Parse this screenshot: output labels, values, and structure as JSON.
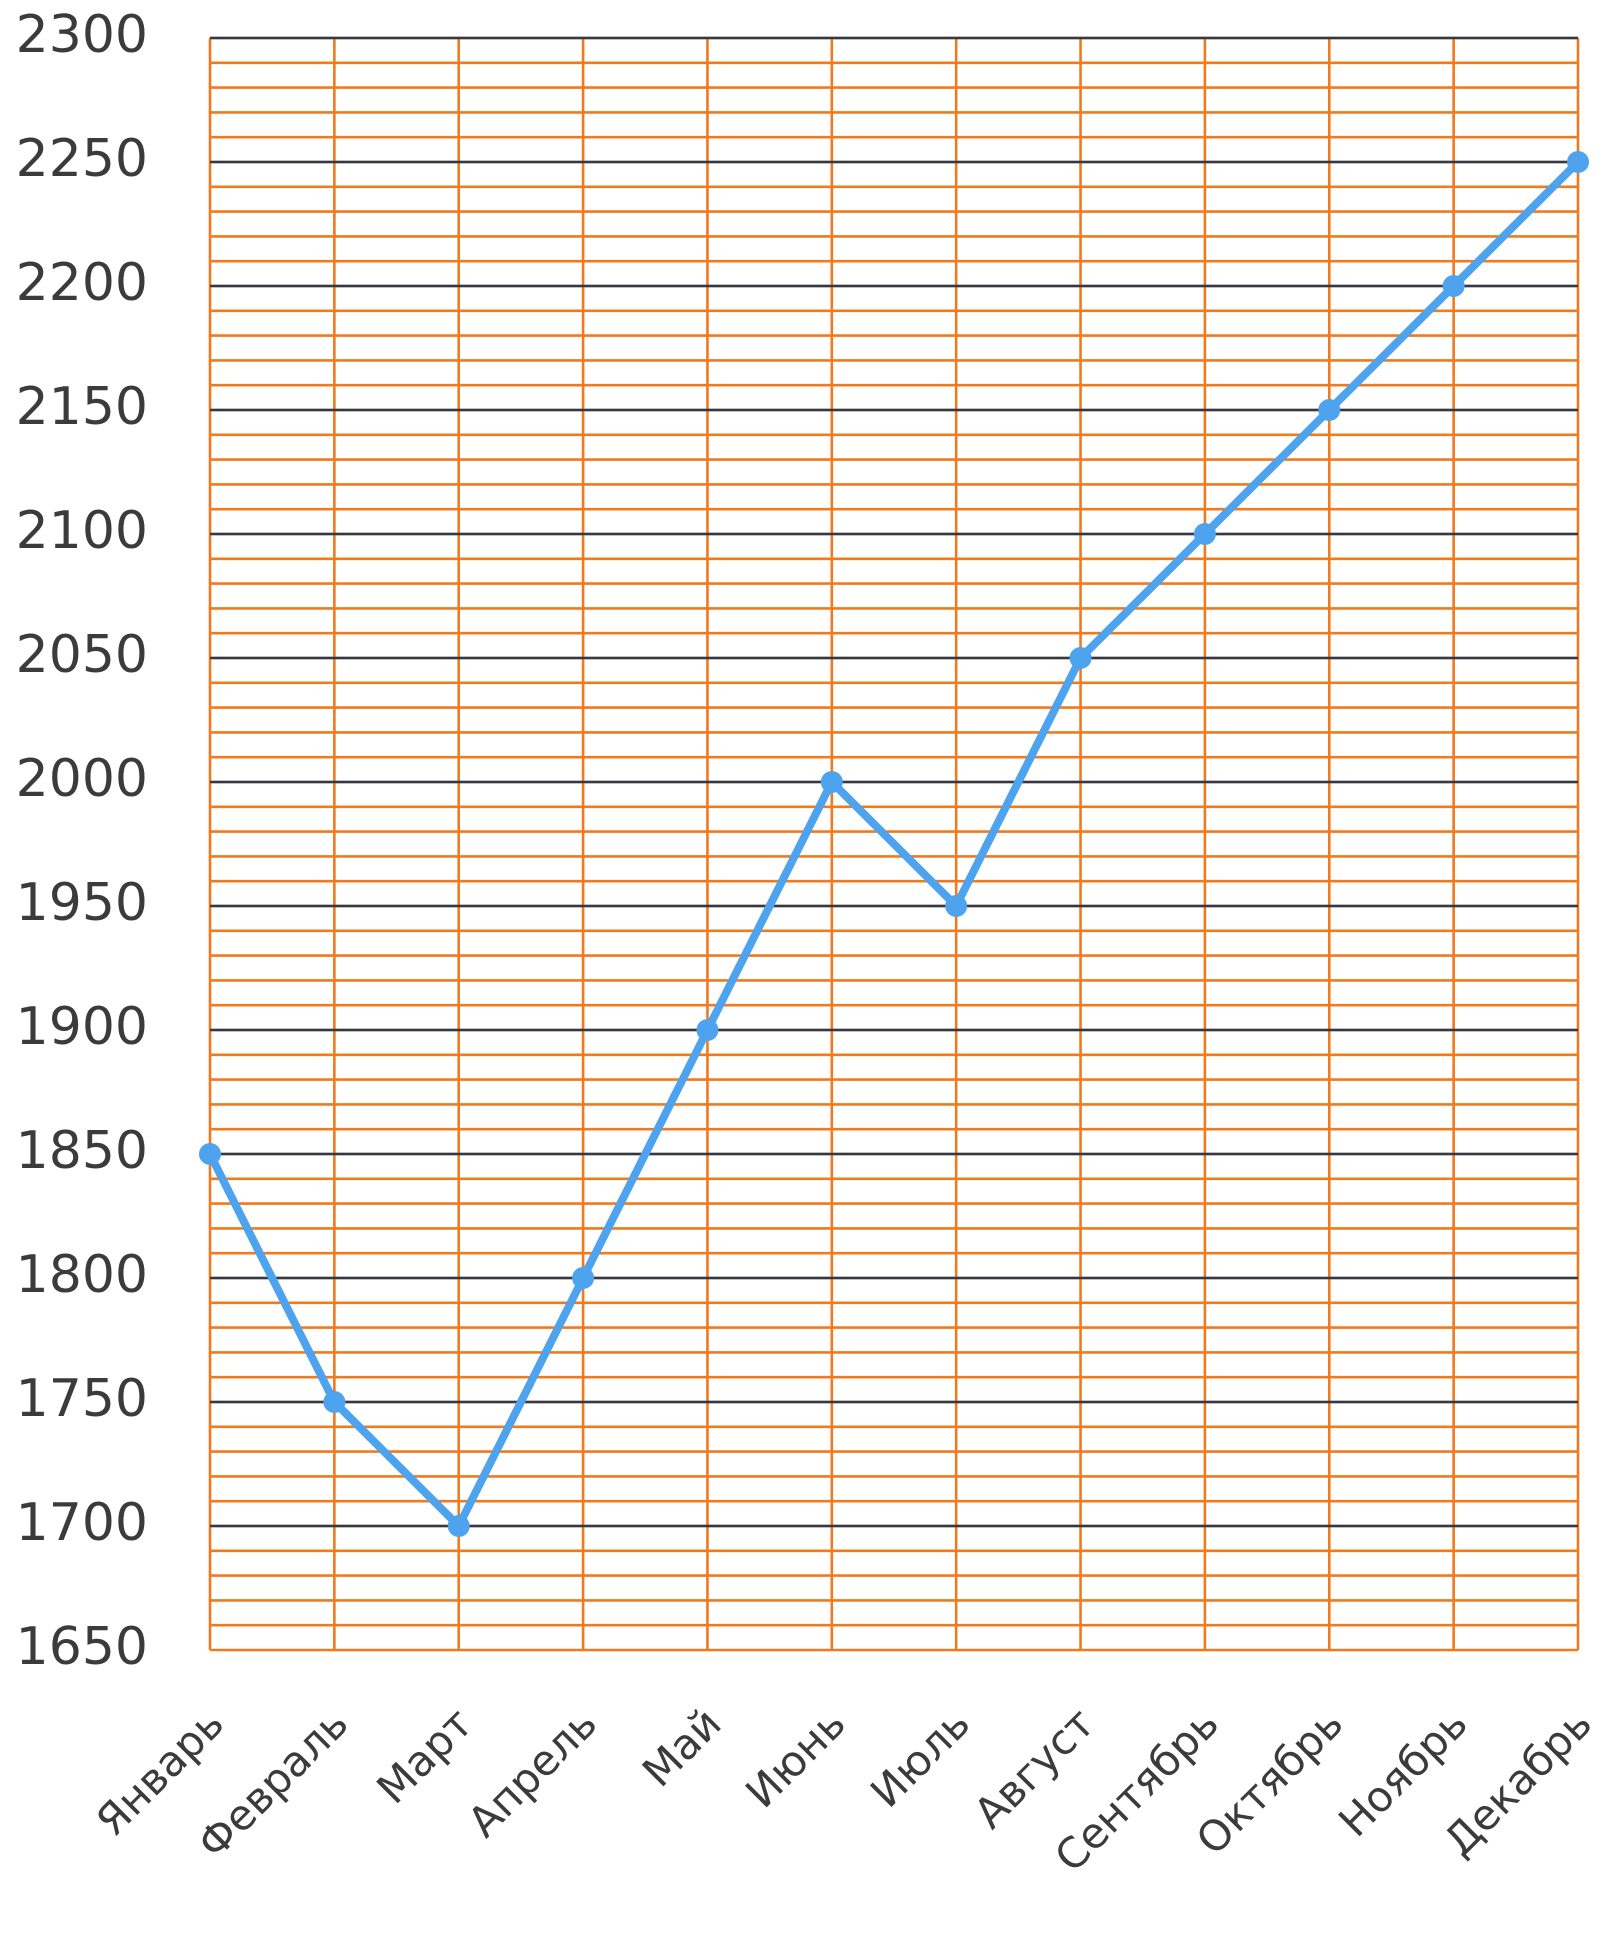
{
  "chart_data": {
    "type": "line",
    "categories": [
      "Январь",
      "Февраль",
      "Март",
      "Апрель",
      "Май",
      "Июнь",
      "Июль",
      "Август",
      "Сентябрь",
      "Октябрь",
      "Ноябрь",
      "Декабрь"
    ],
    "series": [
      {
        "values": [
          1850,
          1750,
          1700,
          1800,
          1900,
          2000,
          1950,
          2050,
          2100,
          2150,
          2200,
          2250
        ]
      }
    ],
    "ylim": [
      1650,
      2300
    ],
    "yticks": [
      1650,
      1700,
      1750,
      1800,
      1850,
      1900,
      1950,
      2000,
      2050,
      2100,
      2150,
      2200,
      2250,
      2300
    ],
    "minor_grid_step": 10,
    "grid": true,
    "colors": {
      "line": "#4da3ee",
      "minor_grid": "#f07a1e",
      "major_grid": "#2f3b4c",
      "category_grid": "#f07a1e"
    }
  }
}
